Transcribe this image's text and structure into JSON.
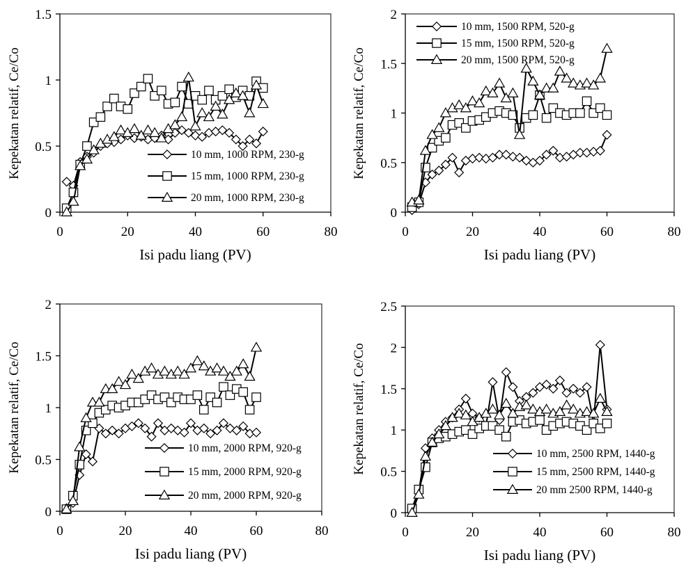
{
  "chart_data": [
    {
      "type": "line",
      "xlabel": "Isi padu liang (PV)",
      "ylabel": "Kepekatan relatif, Ce/Co",
      "xlim": [
        0,
        80
      ],
      "ylim": [
        0,
        1.5
      ],
      "xticks": [
        0,
        20,
        40,
        60,
        80
      ],
      "yticks": [
        0,
        0.5,
        1,
        1.5
      ],
      "ytick_labels": [
        "0",
        "0.5",
        "1",
        "1.5"
      ],
      "legend_position": "bottom-right",
      "series": [
        {
          "name": "10 mm, 1000 RPM, 230-g",
          "marker": "diamond",
          "x": [
            2,
            4,
            6,
            8,
            10,
            12,
            14,
            16,
            18,
            20,
            22,
            24,
            26,
            28,
            30,
            32,
            34,
            36,
            38,
            40,
            42,
            44,
            46,
            48,
            50,
            52,
            54,
            56,
            58,
            60
          ],
          "y": [
            0.23,
            0.2,
            0.38,
            0.42,
            0.45,
            0.5,
            0.52,
            0.53,
            0.55,
            0.58,
            0.56,
            0.57,
            0.55,
            0.56,
            0.58,
            0.55,
            0.6,
            0.62,
            0.6,
            0.58,
            0.57,
            0.6,
            0.61,
            0.62,
            0.6,
            0.55,
            0.5,
            0.55,
            0.52,
            0.61
          ]
        },
        {
          "name": "15 mm, 1000 RPM, 230-g",
          "marker": "square",
          "x": [
            2,
            4,
            6,
            8,
            10,
            12,
            14,
            16,
            18,
            20,
            22,
            24,
            26,
            28,
            30,
            32,
            34,
            36,
            38,
            40,
            42,
            44,
            46,
            48,
            50,
            52,
            54,
            56,
            58,
            60
          ],
          "y": [
            0.03,
            0.15,
            0.36,
            0.5,
            0.68,
            0.72,
            0.8,
            0.86,
            0.8,
            0.78,
            0.9,
            0.95,
            1.01,
            0.88,
            0.92,
            0.82,
            0.83,
            0.95,
            0.82,
            0.88,
            0.85,
            0.92,
            0.85,
            0.88,
            0.93,
            0.87,
            0.92,
            0.88,
            0.99,
            0.94
          ]
        },
        {
          "name": "20 mm, 1000 RPM, 230-g",
          "marker": "triangle",
          "x": [
            2,
            4,
            6,
            8,
            10,
            12,
            14,
            16,
            18,
            20,
            22,
            24,
            26,
            28,
            30,
            32,
            34,
            36,
            38,
            40,
            42,
            44,
            46,
            48,
            50,
            52,
            54,
            56,
            58,
            60
          ],
          "y": [
            0.0,
            0.08,
            0.35,
            0.4,
            0.47,
            0.52,
            0.55,
            0.57,
            0.62,
            0.6,
            0.63,
            0.58,
            0.62,
            0.6,
            0.56,
            0.63,
            0.66,
            0.72,
            1.02,
            0.65,
            0.75,
            0.72,
            0.8,
            0.74,
            0.85,
            0.9,
            0.88,
            0.75,
            0.96,
            0.82
          ]
        }
      ]
    },
    {
      "type": "line",
      "xlabel": "Isi padu liang (PV)",
      "ylabel": "Kepekatan relatif, Ce/Co",
      "xlim": [
        0,
        80
      ],
      "ylim": [
        0,
        2
      ],
      "xticks": [
        0,
        20,
        40,
        60,
        80
      ],
      "yticks": [
        0,
        0.5,
        1,
        1.5,
        2
      ],
      "ytick_labels": [
        "0",
        "0.5",
        "1",
        "1.5",
        "2"
      ],
      "legend_position": "top-left",
      "series": [
        {
          "name": "10 mm, 1500 RPM, 520-g",
          "marker": "diamond",
          "x": [
            2,
            4,
            6,
            8,
            10,
            12,
            14,
            16,
            18,
            20,
            22,
            24,
            26,
            28,
            30,
            32,
            34,
            36,
            38,
            40,
            42,
            44,
            46,
            48,
            50,
            52,
            54,
            56,
            58,
            60
          ],
          "y": [
            0.02,
            0.08,
            0.3,
            0.38,
            0.42,
            0.48,
            0.55,
            0.4,
            0.52,
            0.54,
            0.55,
            0.54,
            0.55,
            0.58,
            0.58,
            0.56,
            0.55,
            0.52,
            0.5,
            0.52,
            0.58,
            0.62,
            0.55,
            0.56,
            0.58,
            0.6,
            0.6,
            0.61,
            0.62,
            0.78
          ]
        },
        {
          "name": "15 mm, 1500 RPM, 520-g",
          "marker": "square",
          "x": [
            2,
            4,
            6,
            8,
            10,
            12,
            14,
            16,
            18,
            20,
            22,
            24,
            26,
            28,
            30,
            32,
            34,
            36,
            38,
            40,
            42,
            44,
            46,
            48,
            50,
            52,
            54,
            56,
            58,
            60
          ],
          "y": [
            0.05,
            0.1,
            0.45,
            0.65,
            0.72,
            0.75,
            0.88,
            0.9,
            0.85,
            0.92,
            0.93,
            0.96,
            1.0,
            1.02,
            1.0,
            0.98,
            0.85,
            0.95,
            0.98,
            1.18,
            0.95,
            1.05,
            1.0,
            0.98,
            1.0,
            1.0,
            1.12,
            1.0,
            1.05,
            0.98
          ]
        },
        {
          "name": "20 mm, 1500 RPM, 520-g",
          "marker": "triangle",
          "x": [
            2,
            4,
            6,
            8,
            10,
            12,
            14,
            16,
            18,
            20,
            22,
            24,
            26,
            28,
            30,
            32,
            34,
            36,
            38,
            40,
            42,
            44,
            46,
            48,
            50,
            52,
            54,
            56,
            58,
            60
          ],
          "y": [
            0.1,
            0.12,
            0.62,
            0.78,
            0.85,
            1.0,
            1.05,
            1.08,
            1.05,
            1.12,
            1.1,
            1.22,
            1.2,
            1.3,
            1.15,
            1.2,
            0.78,
            1.45,
            1.32,
            1.18,
            1.25,
            1.25,
            1.42,
            1.35,
            1.3,
            1.28,
            1.3,
            1.28,
            1.35,
            1.65
          ]
        }
      ]
    },
    {
      "type": "line",
      "xlabel": "Isi padu liang (PV)",
      "ylabel": "Kepekatan relatif, Ce/Co",
      "xlim": [
        0,
        80
      ],
      "ylim": [
        0,
        2
      ],
      "xticks": [
        0,
        20,
        40,
        60,
        80
      ],
      "yticks": [
        0,
        0.5,
        1,
        1.5,
        2
      ],
      "ytick_labels": [
        "0",
        "0.5",
        "1",
        "1.5",
        "2"
      ],
      "legend_position": "bottom-right",
      "series": [
        {
          "name": "10 mm, 2000 RPM, 920-g",
          "marker": "diamond",
          "x": [
            2,
            4,
            6,
            8,
            10,
            12,
            14,
            16,
            18,
            20,
            22,
            24,
            26,
            28,
            30,
            32,
            34,
            36,
            38,
            40,
            42,
            44,
            46,
            48,
            50,
            52,
            54,
            56,
            58,
            60
          ],
          "y": [
            0.03,
            0.08,
            0.35,
            0.55,
            0.48,
            0.8,
            0.75,
            0.78,
            0.75,
            0.8,
            0.82,
            0.85,
            0.8,
            0.72,
            0.85,
            0.78,
            0.8,
            0.78,
            0.76,
            0.85,
            0.78,
            0.8,
            0.75,
            0.78,
            0.85,
            0.8,
            0.78,
            0.82,
            0.75,
            0.76
          ]
        },
        {
          "name": "15 mm, 2000 RPM, 920-g",
          "marker": "square",
          "x": [
            2,
            4,
            6,
            8,
            10,
            12,
            14,
            16,
            18,
            20,
            22,
            24,
            26,
            28,
            30,
            32,
            34,
            36,
            38,
            40,
            42,
            44,
            46,
            48,
            50,
            52,
            54,
            56,
            58,
            60
          ],
          "y": [
            0.02,
            0.15,
            0.45,
            0.78,
            0.85,
            0.95,
            0.98,
            1.02,
            1.0,
            1.02,
            1.05,
            1.05,
            1.08,
            1.12,
            1.08,
            1.1,
            1.05,
            1.1,
            1.08,
            1.08,
            1.12,
            0.98,
            1.1,
            1.05,
            1.2,
            1.12,
            1.18,
            1.15,
            0.98,
            1.1
          ]
        },
        {
          "name": "20 mm, 2000 RPM, 920-g",
          "marker": "triangle",
          "x": [
            2,
            4,
            6,
            8,
            10,
            12,
            14,
            16,
            18,
            20,
            22,
            24,
            26,
            28,
            30,
            32,
            34,
            36,
            38,
            40,
            42,
            44,
            46,
            48,
            50,
            52,
            54,
            56,
            58,
            60
          ],
          "y": [
            0.02,
            0.1,
            0.62,
            0.9,
            1.05,
            1.05,
            1.18,
            1.18,
            1.25,
            1.22,
            1.32,
            1.28,
            1.35,
            1.38,
            1.32,
            1.35,
            1.32,
            1.35,
            1.32,
            1.38,
            1.45,
            1.4,
            1.35,
            1.38,
            1.35,
            1.3,
            1.35,
            1.42,
            1.3,
            1.58
          ]
        }
      ]
    },
    {
      "type": "line",
      "xlabel": "Isi padu liang (PV)",
      "ylabel": "Kepekatan relatif, Ce/Co",
      "xlim": [
        0,
        80
      ],
      "ylim": [
        0,
        2.5
      ],
      "xticks": [
        0,
        20,
        40,
        60,
        80
      ],
      "yticks": [
        0,
        0.5,
        1,
        1.5,
        2,
        2.5
      ],
      "ytick_labels": [
        "0",
        "0.5",
        "1",
        "1.5",
        "2",
        "2.5"
      ],
      "legend_position": "bottom-right",
      "series": [
        {
          "name": "10 mm, 2500 RPM, 1440-g",
          "marker": "diamond",
          "x": [
            2,
            4,
            6,
            8,
            10,
            12,
            14,
            16,
            18,
            20,
            22,
            24,
            26,
            28,
            30,
            32,
            34,
            36,
            38,
            40,
            42,
            44,
            46,
            48,
            50,
            52,
            54,
            56,
            58,
            60
          ],
          "y": [
            0.02,
            0.25,
            0.78,
            0.9,
            1.0,
            1.1,
            1.15,
            1.25,
            1.38,
            1.2,
            1.15,
            1.05,
            1.58,
            1.12,
            1.7,
            1.52,
            1.35,
            1.4,
            1.45,
            1.52,
            1.55,
            1.5,
            1.6,
            1.45,
            1.5,
            1.45,
            1.52,
            1.1,
            2.03,
            1.25
          ]
        },
        {
          "name": "15 mm, 2500 RPM, 1440-g",
          "marker": "square",
          "x": [
            2,
            4,
            6,
            8,
            10,
            12,
            14,
            16,
            18,
            20,
            22,
            24,
            26,
            28,
            30,
            32,
            34,
            36,
            38,
            40,
            42,
            44,
            46,
            48,
            50,
            52,
            54,
            56,
            58,
            60
          ],
          "y": [
            0.05,
            0.28,
            0.55,
            0.85,
            0.9,
            0.92,
            0.95,
            0.98,
            1.0,
            0.95,
            1.02,
            1.05,
            1.05,
            1.0,
            0.92,
            1.1,
            1.12,
            1.08,
            1.1,
            1.12,
            1.0,
            1.05,
            1.08,
            1.1,
            1.08,
            1.05,
            1.0,
            1.08,
            1.02,
            1.08
          ]
        },
        {
          "name": "20 mm 2500 RPM, 1440-g",
          "marker": "triangle",
          "x": [
            2,
            4,
            6,
            8,
            10,
            12,
            14,
            16,
            18,
            20,
            22,
            24,
            26,
            28,
            30,
            32,
            34,
            36,
            38,
            40,
            42,
            44,
            46,
            48,
            50,
            52,
            54,
            56,
            58,
            60
          ],
          "y": [
            0.0,
            0.22,
            0.68,
            0.85,
            0.95,
            1.05,
            1.15,
            1.2,
            1.18,
            1.1,
            1.15,
            1.2,
            1.25,
            1.18,
            1.32,
            1.2,
            1.28,
            1.3,
            1.25,
            1.22,
            1.25,
            1.2,
            1.22,
            1.3,
            1.25,
            1.2,
            1.22,
            1.2,
            1.38,
            1.22
          ]
        }
      ]
    }
  ]
}
